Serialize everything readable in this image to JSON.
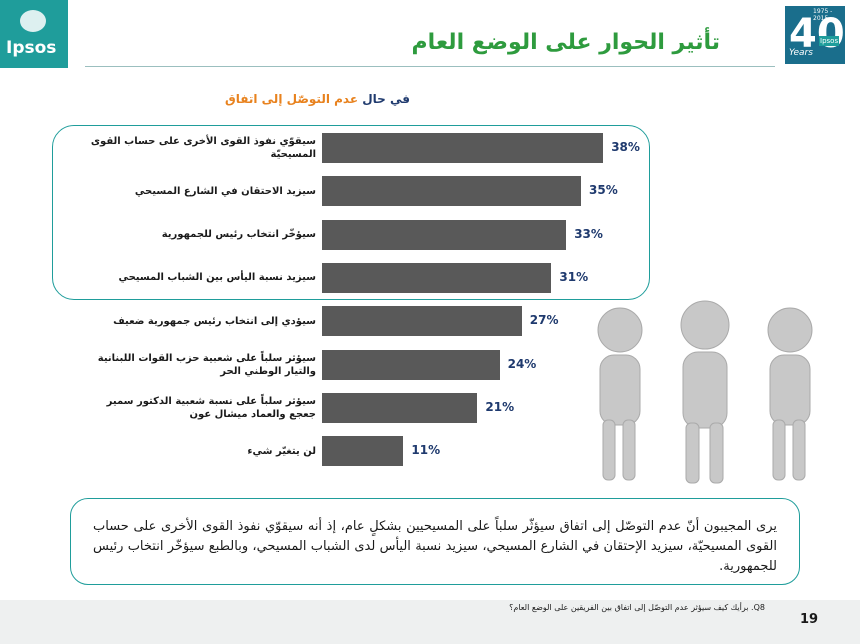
{
  "header": {
    "logo_left": "Ipsos",
    "logo_right_number": "40",
    "logo_right_years": "Years",
    "logo_right_brand": "Ipsos",
    "logo_right_range": "1975 - 2015"
  },
  "chart_data": {
    "type": "bar",
    "title": "تأثير الحوار على الوضع العام",
    "subtitle_prefix": "في حال",
    "subtitle_highlight": "عدم التوصّل إلى اتفاق",
    "categories": [
      "سيقوّي نفوذ القوى الأخرى على حساب القوى المسيحيّة",
      "سيزيد الاحتقان في الشارع المسيحي",
      "سيؤخّر انتخاب رئيس للجمهورية",
      "سيزيد نسبة اليأس بين الشباب المسيحي",
      "سيؤدي إلى انتخاب رئيس جمهورية ضعيف",
      "سيؤثر سلباً على شعبية حزب القوات اللبنانية والتيار الوطني الحر",
      "سيؤثر سلباً على نسبة شعبية الدكتور سمير جعجع والعماد ميشال عون",
      "لن يتغيّر شيء"
    ],
    "values": [
      38,
      35,
      33,
      31,
      27,
      24,
      21,
      11
    ],
    "value_labels": [
      "38%",
      "35%",
      "33%",
      "31%",
      "27%",
      "24%",
      "21%",
      "11%"
    ],
    "color": "#595959"
  },
  "summary": "يرى المجيبون أنّ عدم التوصّل إلى اتفاق سيؤثّر سلباً على المسيحيين بشكلٍ عام، إذ أنه سيقوّي نفوذ القوى الأخرى على حساب القوى المسيحيّة، سيزيد الإحتقان في الشارع المسيحي، سيزيد نسبة اليأس لدى الشباب المسيحي، وبالطبع سيؤخّر انتخاب رئيس للجمهورية.",
  "footer": {
    "question": "Q8. برأيك كيف سيؤثر عدم التوصّل إلى اتفاق بين الفريقين على الوضع العام؟",
    "page": "19"
  }
}
